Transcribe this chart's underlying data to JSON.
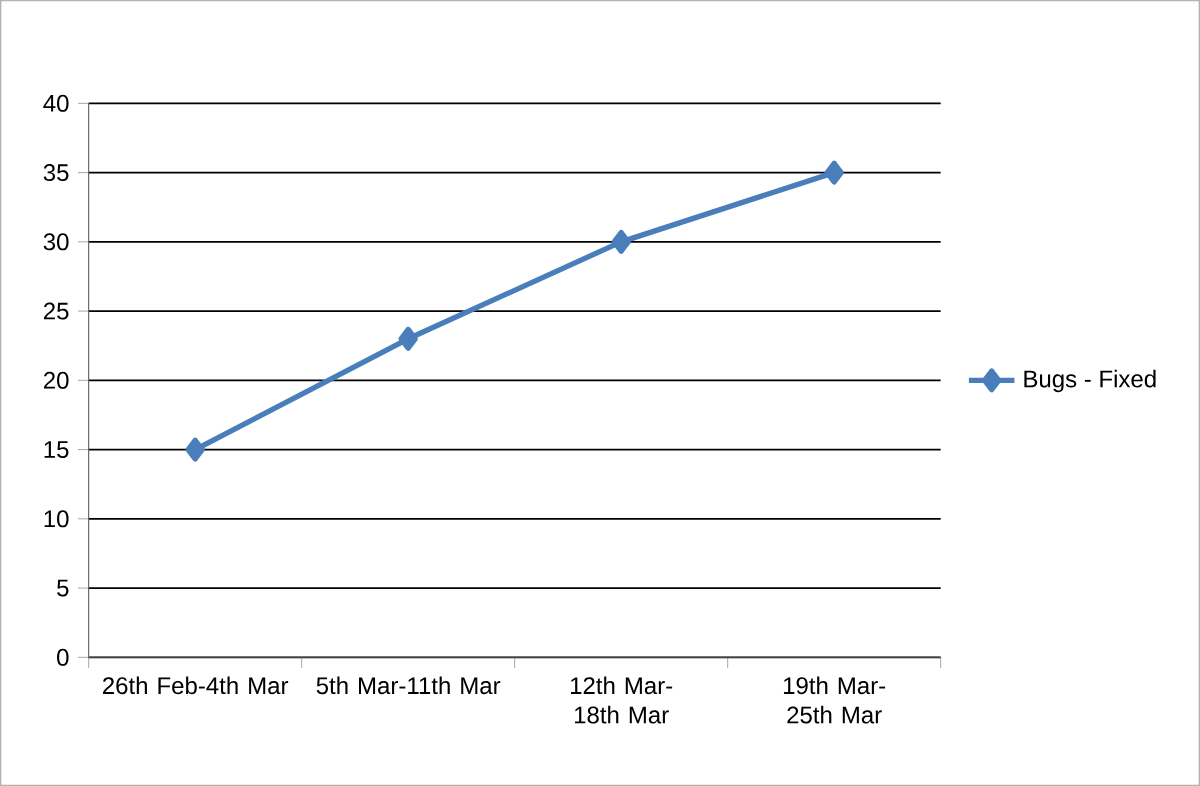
{
  "chart_data": {
    "type": "line",
    "categories": [
      "26th Feb-4th Mar",
      "5th Mar-11th Mar",
      "12th Mar-18th Mar",
      "19th Mar-25th Mar"
    ],
    "series": [
      {
        "name": "Bugs - Fixed",
        "color": "#4a7ebb",
        "values": [
          15,
          23,
          30,
          35
        ]
      }
    ],
    "ylim": [
      0,
      40
    ],
    "yticks": [
      0,
      5,
      10,
      15,
      20,
      25,
      30,
      35,
      40
    ],
    "grid": "y",
    "legend": "right",
    "marker": "diamond",
    "line_style": "solid"
  }
}
